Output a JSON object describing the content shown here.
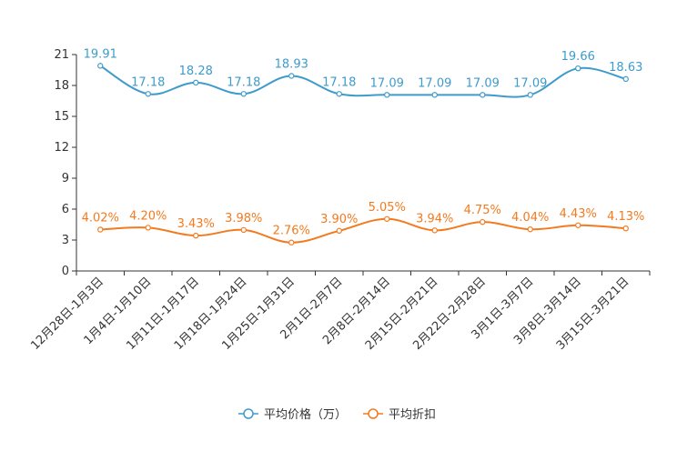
{
  "chart_data": {
    "type": "line",
    "categories": [
      "12月28日-1月3日",
      "1月4日-1月10日",
      "1月11日-1月17日",
      "1月18日-1月24日",
      "1月25日-1月31日",
      "2月1日-2月7日",
      "2月8日-2月14日",
      "2月15日-2月21日",
      "2月22日-2月28日",
      "3月1日-3月7日",
      "3月8日-3月14日",
      "3月15日-3月21日"
    ],
    "yticks": [
      0,
      3,
      6,
      9,
      12,
      15,
      18,
      21
    ],
    "ylim": [
      0,
      21
    ],
    "series": [
      {
        "name": "平均价格（万）",
        "color": "#3e9bcb",
        "values": [
          19.91,
          17.18,
          18.28,
          17.18,
          18.93,
          17.18,
          17.09,
          17.09,
          17.09,
          17.09,
          19.66,
          18.63
        ],
        "labels": [
          "19.91",
          "17.18",
          "18.28",
          "17.18",
          "18.93",
          "17.18",
          "17.09",
          "17.09",
          "17.09",
          "17.09",
          "19.66",
          "18.63"
        ]
      },
      {
        "name": "平均折扣",
        "color": "#f47a1f",
        "values": [
          4.02,
          4.2,
          3.43,
          3.98,
          2.76,
          3.9,
          5.05,
          3.94,
          4.75,
          4.04,
          4.43,
          4.13
        ],
        "labels": [
          "4.02%",
          "4.20%",
          "3.43%",
          "3.98%",
          "2.76%",
          "3.90%",
          "5.05%",
          "3.94%",
          "4.75%",
          "4.04%",
          "4.43%",
          "4.13%"
        ]
      }
    ],
    "legend": "bottom-center"
  }
}
